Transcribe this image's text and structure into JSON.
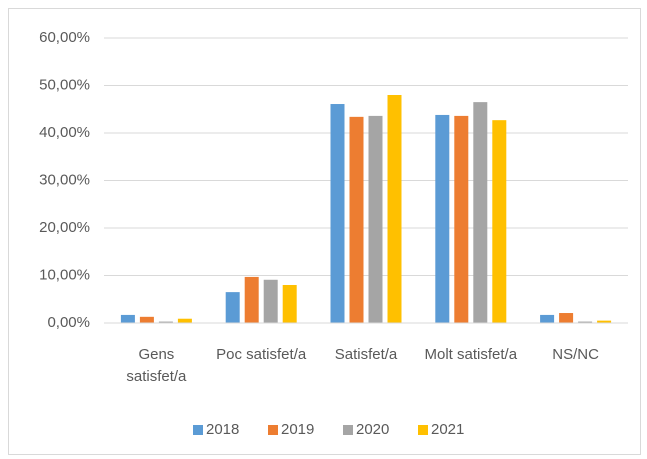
{
  "chart_data": {
    "type": "bar",
    "categories": [
      "Gens satisfet/a",
      "Poc satisfet/a",
      "Satisfet/a",
      "Molt satisfet/a",
      "NS/NC"
    ],
    "series": [
      {
        "name": "2018",
        "color": "#5b9bd5",
        "values": [
          1.7,
          6.5,
          46.1,
          43.8,
          1.7
        ]
      },
      {
        "name": "2019",
        "color": "#ed7d31",
        "values": [
          1.3,
          9.7,
          43.4,
          43.6,
          2.1
        ]
      },
      {
        "name": "2020",
        "color": "#a5a5a5",
        "values": [
          0.3,
          9.1,
          43.6,
          46.5,
          0.3
        ]
      },
      {
        "name": "2021",
        "color": "#ffc000",
        "values": [
          0.9,
          8.0,
          48.0,
          42.7,
          0.5
        ]
      }
    ],
    "ylim": [
      0,
      60
    ],
    "yticks": [
      {
        "value": 0,
        "label": "0,00%"
      },
      {
        "value": 10,
        "label": "10,00%"
      },
      {
        "value": 20,
        "label": "20,00%"
      },
      {
        "value": 30,
        "label": "30,00%"
      },
      {
        "value": 40,
        "label": "40,00%"
      },
      {
        "value": 50,
        "label": "50,00%"
      },
      {
        "value": 60,
        "label": "60,00%"
      }
    ],
    "grid": true,
    "legend": "bottom"
  }
}
